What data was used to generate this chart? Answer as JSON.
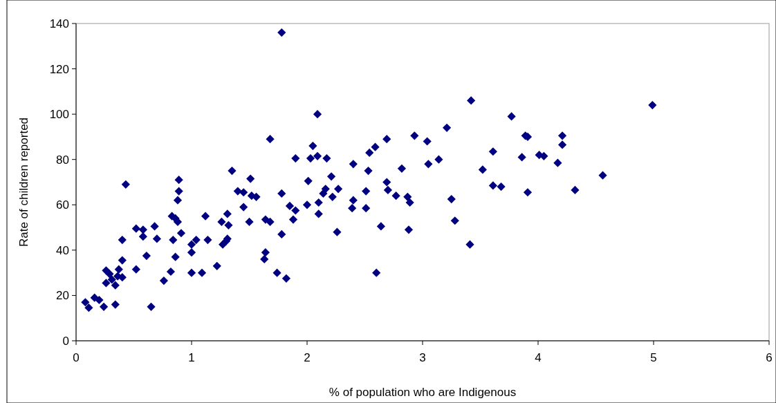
{
  "chart_data": {
    "type": "scatter",
    "xlabel": "% of population who are Indigenous",
    "ylabel": "Rate of children reported",
    "xlim": [
      0,
      6
    ],
    "xticks": [
      0,
      1,
      2,
      3,
      4,
      5,
      6
    ],
    "ylim": [
      0,
      140
    ],
    "yticks": [
      0,
      20,
      40,
      60,
      80,
      100,
      120,
      140
    ],
    "grid": false,
    "marker": "diamond",
    "series": [
      {
        "color": "#000080",
        "x": [
          0.08,
          0.11,
          0.16,
          0.2,
          0.24,
          0.26,
          0.26,
          0.29,
          0.31,
          0.34,
          0.34,
          0.36,
          0.37,
          0.4,
          0.4,
          0.4,
          0.43,
          0.52,
          0.52,
          0.58,
          0.58,
          0.61,
          0.65,
          0.68,
          0.7,
          0.76,
          0.82,
          0.83,
          0.84,
          0.86,
          0.86,
          0.88,
          0.88,
          0.89,
          0.89,
          0.91,
          1.0,
          1.0,
          1.0,
          1.04,
          1.09,
          1.12,
          1.14,
          1.22,
          1.26,
          1.27,
          1.3,
          1.31,
          1.31,
          1.32,
          1.35,
          1.4,
          1.45,
          1.45,
          1.5,
          1.51,
          1.52,
          1.56,
          1.63,
          1.64,
          1.64,
          1.68,
          1.68,
          1.74,
          1.78,
          1.78,
          1.78,
          1.82,
          1.85,
          1.88,
          1.9,
          1.9,
          2.0,
          2.01,
          2.03,
          2.05,
          2.09,
          2.09,
          2.1,
          2.1,
          2.14,
          2.16,
          2.17,
          2.21,
          2.22,
          2.26,
          2.27,
          2.39,
          2.4,
          2.4,
          2.51,
          2.51,
          2.53,
          2.54,
          2.59,
          2.6,
          2.64,
          2.69,
          2.69,
          2.7,
          2.77,
          2.82,
          2.87,
          2.88,
          2.89,
          2.93,
          3.04,
          3.05,
          3.14,
          3.21,
          3.25,
          3.28,
          3.41,
          3.42,
          3.52,
          3.61,
          3.61,
          3.68,
          3.77,
          3.86,
          3.89,
          3.91,
          3.91,
          4.01,
          4.05,
          4.17,
          4.21,
          4.21,
          4.32,
          4.56,
          4.99
        ],
        "values": [
          17,
          14.6,
          19,
          18,
          15,
          25.5,
          31,
          29.5,
          27,
          24.5,
          16,
          28.5,
          31.5,
          28,
          35.5,
          44.5,
          69,
          31.5,
          49.5,
          49,
          46,
          37.5,
          15,
          50.5,
          45,
          26.5,
          30.5,
          55,
          44.5,
          37,
          54,
          52.5,
          62,
          66,
          71,
          47.5,
          42.5,
          39,
          30,
          44.5,
          30,
          55,
          44.5,
          33,
          52.5,
          42.5,
          44,
          45,
          56,
          51,
          75,
          66,
          65.5,
          59,
          52.5,
          71.5,
          64,
          63.5,
          36,
          39,
          53.5,
          52.5,
          89,
          30,
          136,
          65,
          47,
          27.5,
          59.5,
          53.5,
          57.5,
          80.5,
          60,
          70.5,
          80.5,
          86,
          81.5,
          100,
          61,
          56,
          65,
          67,
          80.5,
          72.5,
          63.5,
          48,
          67,
          58.5,
          62,
          78,
          58.5,
          66,
          75,
          83,
          85.5,
          30,
          50.5,
          89,
          70,
          66.5,
          64,
          76,
          63.5,
          49,
          61,
          90.5,
          88,
          78,
          80,
          94,
          62.5,
          53,
          42.5,
          106,
          75.5,
          83.5,
          68.5,
          68,
          99,
          81,
          90.5,
          90,
          65.5,
          82,
          81.5,
          78.5,
          90.5,
          86.5,
          66.5,
          73,
          104
        ]
      }
    ]
  }
}
